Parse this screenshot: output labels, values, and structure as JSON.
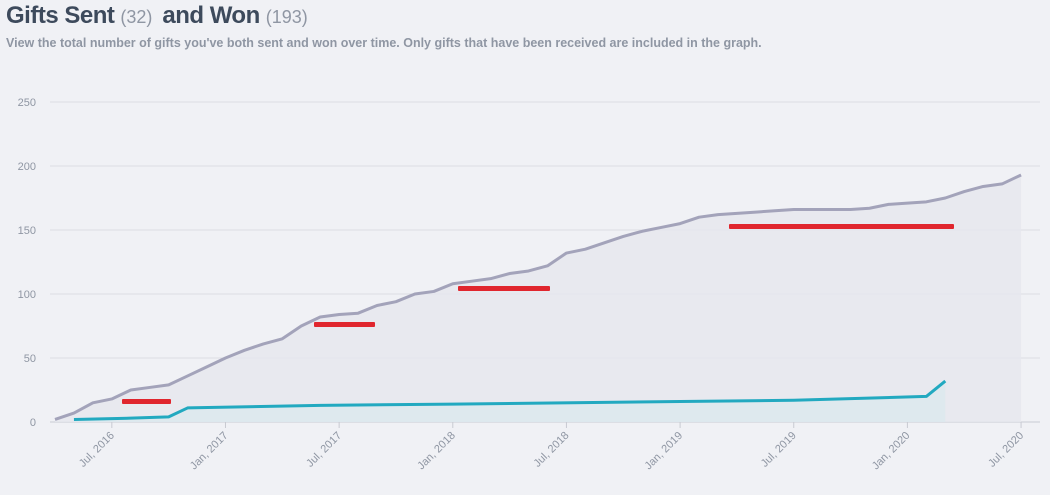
{
  "header": {
    "sent_label": "Gifts Sent",
    "sent_count": "(32)",
    "won_label": "and Won",
    "won_count": "(193)",
    "subtitle": "View the total number of gifts you've both sent and won over time. Only gifts that have been received are included in the graph."
  },
  "chart_data": {
    "type": "line",
    "xlim": [
      "2016-04",
      "2020-08"
    ],
    "xticks": [
      {
        "value": "2016-07",
        "label": "Jul, 2016"
      },
      {
        "value": "2017-01",
        "label": "Jan, 2017"
      },
      {
        "value": "2017-07",
        "label": "Jul, 2017"
      },
      {
        "value": "2018-01",
        "label": "Jan, 2018"
      },
      {
        "value": "2018-07",
        "label": "Jul, 2018"
      },
      {
        "value": "2019-01",
        "label": "Jan, 2019"
      },
      {
        "value": "2019-07",
        "label": "Jul, 2019"
      },
      {
        "value": "2020-01",
        "label": "Jan, 2020"
      },
      {
        "value": "2020-07",
        "label": "Jul, 2020"
      }
    ],
    "ylim": [
      0,
      250
    ],
    "yticks": [
      0,
      50,
      100,
      150,
      200,
      250
    ],
    "grid": true,
    "series": [
      {
        "color": "#a3a3ba",
        "fill": "#e6e7ee",
        "x": [
          "2016-04",
          "2016-05",
          "2016-06",
          "2016-07",
          "2016-08",
          "2016-09",
          "2016-10",
          "2016-11",
          "2016-12",
          "2017-01",
          "2017-02",
          "2017-03",
          "2017-04",
          "2017-05",
          "2017-06",
          "2017-07",
          "2017-08",
          "2017-09",
          "2017-10",
          "2017-11",
          "2017-12",
          "2018-01",
          "2018-02",
          "2018-03",
          "2018-04",
          "2018-05",
          "2018-06",
          "2018-07",
          "2018-08",
          "2018-09",
          "2018-10",
          "2018-11",
          "2018-12",
          "2019-01",
          "2019-02",
          "2019-03",
          "2019-04",
          "2019-05",
          "2019-06",
          "2019-07",
          "2019-08",
          "2019-09",
          "2019-10",
          "2019-11",
          "2019-12",
          "2020-01",
          "2020-02",
          "2020-03",
          "2020-04",
          "2020-05",
          "2020-06",
          "2020-07"
        ],
        "values": [
          2,
          7,
          15,
          18,
          25,
          27,
          29,
          36,
          43,
          50,
          56,
          61,
          65,
          75,
          82,
          84,
          85,
          91,
          94,
          100,
          102,
          108,
          110,
          112,
          116,
          118,
          122,
          132,
          135,
          140,
          145,
          149,
          152,
          155,
          160,
          162,
          163,
          164,
          165,
          166,
          166,
          166,
          166,
          167,
          170,
          171,
          172,
          175,
          180,
          184,
          186,
          193
        ]
      },
      {
        "color": "#22a9c0",
        "fill": "#dbe9ee",
        "x": [
          "2016-05",
          "2016-08",
          "2016-10",
          "2016-11",
          "2017-06",
          "2018-01",
          "2019-01",
          "2019-07",
          "2020-02",
          "2020-03"
        ],
        "values": [
          2,
          3,
          4,
          11,
          13,
          14,
          16,
          17,
          20,
          32
        ]
      }
    ]
  }
}
